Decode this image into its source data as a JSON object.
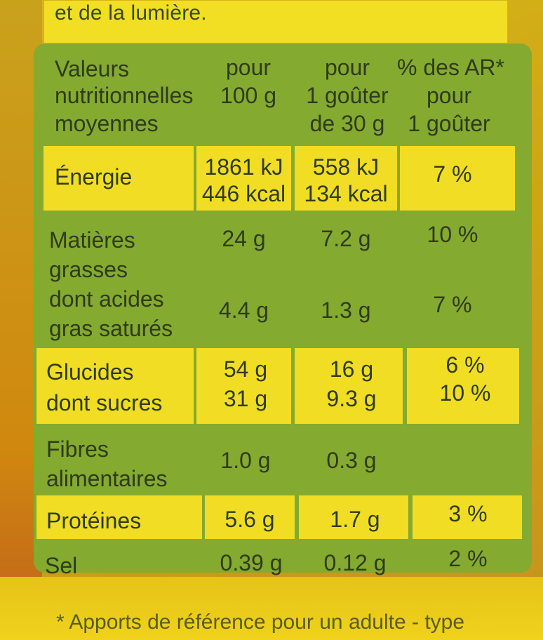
{
  "top_text": "et de la lumière.",
  "header": {
    "col1": [
      "Valeurs",
      "nutritionnelles",
      "moyennes"
    ],
    "col2": [
      "pour",
      "100 g"
    ],
    "col3": [
      "pour",
      "1 goûter",
      "de 30 g"
    ],
    "col4": [
      "% des AR*",
      "pour",
      "1 goûter"
    ]
  },
  "rows": {
    "energie": {
      "label": "Énergie",
      "per100": [
        "1861 kJ",
        "446 kcal"
      ],
      "per30": [
        "558 kJ",
        "134 kcal"
      ],
      "ar": "7 %"
    },
    "matieres": {
      "label": [
        "Matières",
        "grasses"
      ],
      "per100": "24 g",
      "per30": "7.2 g",
      "ar": "10 %"
    },
    "acides": {
      "label": [
        "dont acides",
        "gras saturés"
      ],
      "per100": "4.4 g",
      "per30": "1.3 g",
      "ar": "7 %"
    },
    "glucides": {
      "label": "Glucides",
      "per100": "54 g",
      "per30": "16 g",
      "ar": "6 %"
    },
    "sucres": {
      "label": "dont sucres",
      "per100": "31 g",
      "per30": "9.3 g",
      "ar": "10 %"
    },
    "fibres": {
      "label": [
        "Fibres",
        "alimentaires"
      ],
      "per100": "1.0 g",
      "per30": "0.3 g",
      "ar": ""
    },
    "proteines": {
      "label": "Protéines",
      "per100": "5.6 g",
      "per30": "1.7 g",
      "ar": "3 %"
    },
    "sel": {
      "label": "Sel",
      "per100": "0.39 g",
      "per30": "0.12 g",
      "ar": "2 %"
    }
  },
  "bottom_text": "* Apports de référence pour un adulte - type",
  "colors": {
    "green": "#84aa2f",
    "yellow": "#f1dd23",
    "text": "#2f3b1a"
  }
}
